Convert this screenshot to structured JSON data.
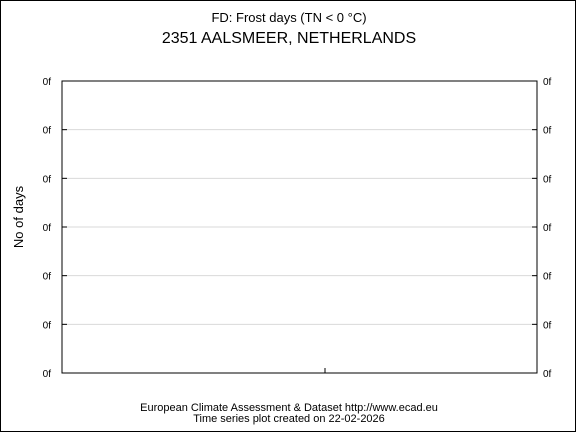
{
  "chart_data": {
    "type": "line",
    "title": "FD: Frost days (TN < 0 °C)",
    "subtitle": "2351 AALSMEER, NETHERLANDS",
    "xlabel": "",
    "ylabel": "No of days",
    "y_tick_labels_left": [
      "0f",
      "0f",
      "0f",
      "0f",
      "0f",
      "0f",
      "0f"
    ],
    "y_tick_labels_right": [
      "0f",
      "0f",
      "0f",
      "0f",
      "0f",
      "0f",
      "0f"
    ],
    "x_tick_labels": [],
    "series": [],
    "grid": true,
    "legend": "none"
  },
  "footer": {
    "line1": "European Climate Assessment & Dataset  http://www.ecad.eu",
    "line2": "Time series plot created on 22-02-2026"
  },
  "colors": {
    "axis": "#000000",
    "grid": "#d9d9d9",
    "background": "#ffffff"
  }
}
